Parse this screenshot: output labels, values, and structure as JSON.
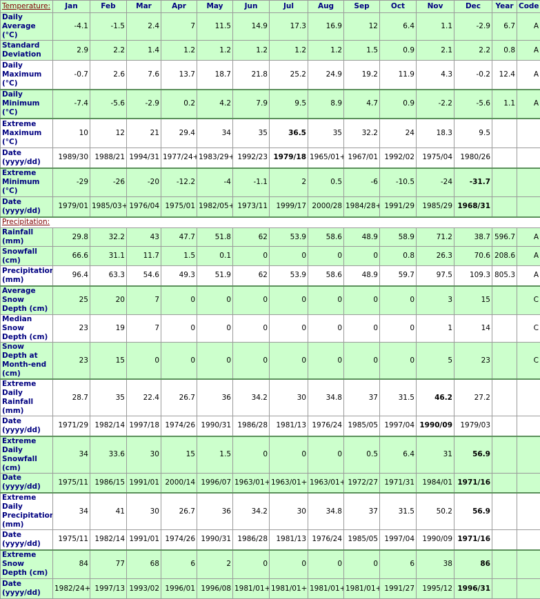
{
  "header": {
    "months": [
      "Jan",
      "Feb",
      "Mar",
      "Apr",
      "May",
      "Jun",
      "Jul",
      "Aug",
      "Sep",
      "Oct",
      "Nov",
      "Dec"
    ],
    "year": "Year",
    "code": "Code"
  },
  "sections": [
    {
      "title": "Temperature:",
      "rows": [
        {
          "label": "Daily Average (°C)",
          "shade": true,
          "values": [
            "-4.1",
            "-1.5",
            "2.4",
            "7",
            "11.5",
            "14.9",
            "17.3",
            "16.9",
            "12",
            "6.4",
            "1.1",
            "-2.9"
          ],
          "year": "6.7",
          "code": "A"
        },
        {
          "label": "Standard Deviation",
          "shade": true,
          "values": [
            "2.9",
            "2.2",
            "1.4",
            "1.2",
            "1.2",
            "1.2",
            "1.2",
            "1.2",
            "1.5",
            "0.9",
            "2.1",
            "2.2"
          ],
          "year": "0.8",
          "code": "A"
        },
        {
          "label": "Daily Maximum (°C)",
          "shade": false,
          "values": [
            "-0.7",
            "2.6",
            "7.6",
            "13.7",
            "18.7",
            "21.8",
            "25.2",
            "24.9",
            "19.2",
            "11.9",
            "4.3",
            "-0.2"
          ],
          "year": "12.4",
          "code": "A"
        },
        {
          "label": "Daily Minimum (°C)",
          "shade": true,
          "values": [
            "-7.4",
            "-5.6",
            "-2.9",
            "0.2",
            "4.2",
            "7.9",
            "9.5",
            "8.9",
            "4.7",
            "0.9",
            "-2.2",
            "-5.6"
          ],
          "year": "1.1",
          "code": "A"
        },
        {
          "label": "Extreme Maximum (°C)",
          "shade": false,
          "bold": 6,
          "values": [
            "10",
            "12",
            "21",
            "29.4",
            "34",
            "35",
            "36.5",
            "35",
            "32.2",
            "24",
            "18.3",
            "9.5"
          ]
        },
        {
          "label": "Date (yyyy/dd)",
          "shade": false,
          "bold": 6,
          "values": [
            "1989/30",
            "1988/21",
            "1994/31",
            "1977/24+",
            "1983/29+",
            "1992/23",
            "1979/18",
            "1965/01+",
            "1967/01",
            "1992/02",
            "1975/04",
            "1980/26"
          ]
        },
        {
          "label": "Extreme Minimum (°C)",
          "shade": true,
          "bold": 11,
          "values": [
            "-29",
            "-26",
            "-20",
            "-12.2",
            "-4",
            "-1.1",
            "2",
            "0.5",
            "-6",
            "-10.5",
            "-24",
            "-31.7"
          ]
        },
        {
          "label": "Date (yyyy/dd)",
          "shade": true,
          "bold": 11,
          "values": [
            "1979/01",
            "1985/03+",
            "1976/04",
            "1975/01",
            "1982/05+",
            "1973/11",
            "1999/17",
            "2000/28",
            "1984/28+",
            "1991/29",
            "1985/29",
            "1968/31"
          ]
        }
      ]
    },
    {
      "title": "Precipitation:",
      "rows": [
        {
          "label": "Rainfall (mm)",
          "shade": true,
          "values": [
            "29.8",
            "32.2",
            "43",
            "47.7",
            "51.8",
            "62",
            "53.9",
            "58.6",
            "48.9",
            "58.9",
            "71.2",
            "38.7"
          ],
          "year": "596.7",
          "code": "A"
        },
        {
          "label": "Snowfall (cm)",
          "shade": true,
          "values": [
            "66.6",
            "31.1",
            "11.7",
            "1.5",
            "0.1",
            "0",
            "0",
            "0",
            "0",
            "0.8",
            "26.3",
            "70.6"
          ],
          "year": "208.6",
          "code": "A"
        },
        {
          "label": "Precipitation (mm)",
          "shade": false,
          "values": [
            "96.4",
            "63.3",
            "54.6",
            "49.3",
            "51.9",
            "62",
            "53.9",
            "58.6",
            "48.9",
            "59.7",
            "97.5",
            "109.3"
          ],
          "year": "805.3",
          "code": "A"
        },
        {
          "label": "Average Snow Depth (cm)",
          "shade": true,
          "values": [
            "25",
            "20",
            "7",
            "0",
            "0",
            "0",
            "0",
            "0",
            "0",
            "0",
            "3",
            "15"
          ],
          "code": "C"
        },
        {
          "label": "Median Snow Depth (cm)",
          "shade": false,
          "values": [
            "23",
            "19",
            "7",
            "0",
            "0",
            "0",
            "0",
            "0",
            "0",
            "0",
            "1",
            "14"
          ],
          "code": "C"
        },
        {
          "label": "Snow Depth at Month-end (cm)",
          "shade": true,
          "values": [
            "23",
            "15",
            "0",
            "0",
            "0",
            "0",
            "0",
            "0",
            "0",
            "0",
            "5",
            "23"
          ],
          "code": "C"
        },
        {
          "label": "Extreme Daily Rainfall (mm)",
          "shade": false,
          "bold": 10,
          "values": [
            "28.7",
            "35",
            "22.4",
            "26.7",
            "36",
            "34.2",
            "30",
            "34.8",
            "37",
            "31.5",
            "46.2",
            "27.2"
          ]
        },
        {
          "label": "Date (yyyy/dd)",
          "shade": false,
          "bold": 10,
          "values": [
            "1971/29",
            "1982/14",
            "1997/18",
            "1974/26",
            "1990/31",
            "1986/28",
            "1981/13",
            "1976/24",
            "1985/05",
            "1997/04",
            "1990/09",
            "1979/03"
          ]
        },
        {
          "label": "Extreme Daily Snowfall (cm)",
          "shade": true,
          "bold": 11,
          "values": [
            "34",
            "33.6",
            "30",
            "15",
            "1.5",
            "0",
            "0",
            "0",
            "0.5",
            "6.4",
            "31",
            "56.9"
          ]
        },
        {
          "label": "Date (yyyy/dd)",
          "shade": true,
          "bold": 11,
          "values": [
            "1975/11",
            "1986/15",
            "1991/01",
            "2000/14",
            "1996/07",
            "1963/01+",
            "1963/01+",
            "1963/01+",
            "1972/27",
            "1971/31",
            "1984/01",
            "1971/16"
          ]
        },
        {
          "label": "Extreme Daily Precipitation (mm)",
          "shade": false,
          "bold": 11,
          "values": [
            "34",
            "41",
            "30",
            "26.7",
            "36",
            "34.2",
            "30",
            "34.8",
            "37",
            "31.5",
            "50.2",
            "56.9"
          ]
        },
        {
          "label": "Date (yyyy/dd)",
          "shade": false,
          "bold": 11,
          "values": [
            "1975/11",
            "1982/14",
            "1991/01",
            "1974/26",
            "1990/31",
            "1986/28",
            "1981/13",
            "1976/24",
            "1985/05",
            "1997/04",
            "1990/09",
            "1971/16"
          ]
        },
        {
          "label": "Extreme Snow Depth (cm)",
          "shade": true,
          "bold": 11,
          "values": [
            "84",
            "77",
            "68",
            "6",
            "2",
            "0",
            "0",
            "0",
            "0",
            "6",
            "38",
            "86"
          ]
        },
        {
          "label": "Date (yyyy/dd)",
          "shade": true,
          "bold": 11,
          "values": [
            "1982/24+",
            "1997/13",
            "1993/02",
            "1996/01",
            "1996/08",
            "1981/01+",
            "1981/01+",
            "1981/01+",
            "1981/01+",
            "1991/27",
            "1995/12",
            "1996/31"
          ]
        }
      ]
    }
  ]
}
